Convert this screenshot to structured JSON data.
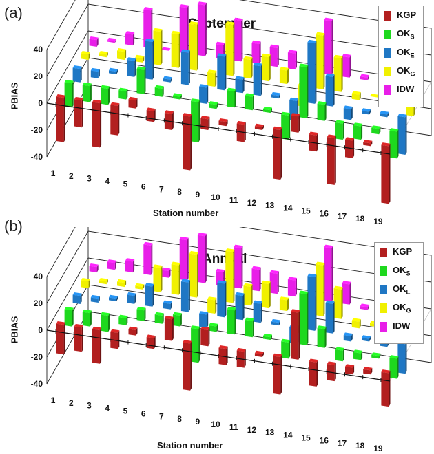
{
  "panels": [
    {
      "label": "(a)",
      "chart_data": {
        "type": "bar",
        "title": "September",
        "xlabel": "Station number",
        "ylabel": "PBIAS",
        "ylim": [
          -40,
          40
        ],
        "yticks": [
          40,
          20,
          0,
          -20,
          -40
        ],
        "categories": [
          "1",
          "2",
          "3",
          "4",
          "5",
          "6",
          "7",
          "8",
          "9",
          "10",
          "11",
          "12",
          "13",
          "14",
          "15",
          "16",
          "17",
          "18",
          "19"
        ],
        "series": [
          {
            "name": "KGP",
            "color": "#b21f1f",
            "values": [
              -33,
              -20,
              -33,
              -22,
              6,
              -8,
              -12,
              -40,
              -8,
              -3,
              -13,
              -2,
              -37,
              12,
              -12,
              -35,
              -13,
              -2,
              -43
            ]
          },
          {
            "name": "OKS",
            "color": "#1ed81e",
            "values": [
              -18,
              -12,
              -12,
              -6,
              18,
              6,
              2,
              -30,
              -3,
              12,
              10,
              2,
              -18,
              38,
              12,
              -12,
              -10,
              -4,
              -20
            ]
          },
          {
            "name": "OKE",
            "color": "#1f77c4",
            "values": [
              -10,
              -5,
              2,
              12,
              28,
              2,
              24,
              -12,
              25,
              10,
              22,
              2,
              -15,
              45,
              22,
              -8,
              -2,
              -2,
              -28
            ]
          },
          {
            "name": "OKG",
            "color": "#f0f000",
            "values": [
              -4,
              2,
              6,
              3,
              25,
              25,
              34,
              -10,
              38,
              14,
              18,
              10,
              -15,
              40,
              25,
              -4,
              0,
              -5,
              -10
            ]
          },
          {
            "name": "IDW",
            "color": "#e81ee8",
            "values": [
              -5,
              1,
              8,
              28,
              0,
              34,
              38,
              10,
              30,
              15,
              14,
              12,
              -18,
              40,
              15,
              2,
              2,
              -5,
              -12
            ]
          }
        ],
        "grid": true,
        "legend_position": "top-right"
      }
    },
    {
      "label": "(b)",
      "chart_data": {
        "type": "bar",
        "title": "Annual",
        "xlabel": "Station number",
        "ylabel": "PBIAS",
        "ylim": [
          -40,
          40
        ],
        "yticks": [
          40,
          20,
          0,
          -20,
          -40
        ],
        "categories": [
          "1",
          "2",
          "3",
          "4",
          "5",
          "6",
          "7",
          "8",
          "9",
          "10",
          "11",
          "12",
          "13",
          "14",
          "15",
          "16",
          "17",
          "18",
          "19"
        ],
        "series": [
          {
            "name": "KGP",
            "color": "#b21f1f",
            "values": [
              -22,
              -18,
              -25,
              -12,
              4,
              -8,
              16,
              -35,
              12,
              -12,
              -12,
              -2,
              -28,
              35,
              -18,
              -12,
              -5,
              -3,
              -25
            ]
          },
          {
            "name": "OKS",
            "color": "#1ed81e",
            "values": [
              -12,
              -10,
              -12,
              -5,
              8,
              6,
              8,
              -25,
              4,
              18,
              12,
              2,
              -12,
              38,
              14,
              -8,
              -5,
              -2,
              -15
            ]
          },
          {
            "name": "OKE",
            "color": "#1f77c4",
            "values": [
              -6,
              -3,
              2,
              6,
              15,
              4,
              22,
              -10,
              25,
              18,
              14,
              2,
              -12,
              40,
              22,
              -4,
              -2,
              -4,
              -22
            ]
          },
          {
            "name": "OKG",
            "color": "#f0f000",
            "values": [
              -5,
              2,
              3,
              2,
              18,
              22,
              32,
              -10,
              38,
              14,
              18,
              8,
              -15,
              38,
              22,
              -5,
              -2,
              -10,
              -8
            ]
          },
          {
            "name": "IDW",
            "color": "#e81ee8",
            "values": [
              -4,
              5,
              8,
              22,
              5,
              30,
              35,
              10,
              30,
              16,
              15,
              12,
              -15,
              40,
              15,
              -2,
              0,
              -8,
              -10
            ]
          }
        ],
        "grid": true,
        "legend_position": "top-right"
      }
    }
  ],
  "legend": [
    {
      "main": "KGP",
      "sub": ""
    },
    {
      "main": "OK",
      "sub": "S"
    },
    {
      "main": "OK",
      "sub": "E"
    },
    {
      "main": "OK",
      "sub": "G"
    },
    {
      "main": "IDW",
      "sub": ""
    }
  ]
}
